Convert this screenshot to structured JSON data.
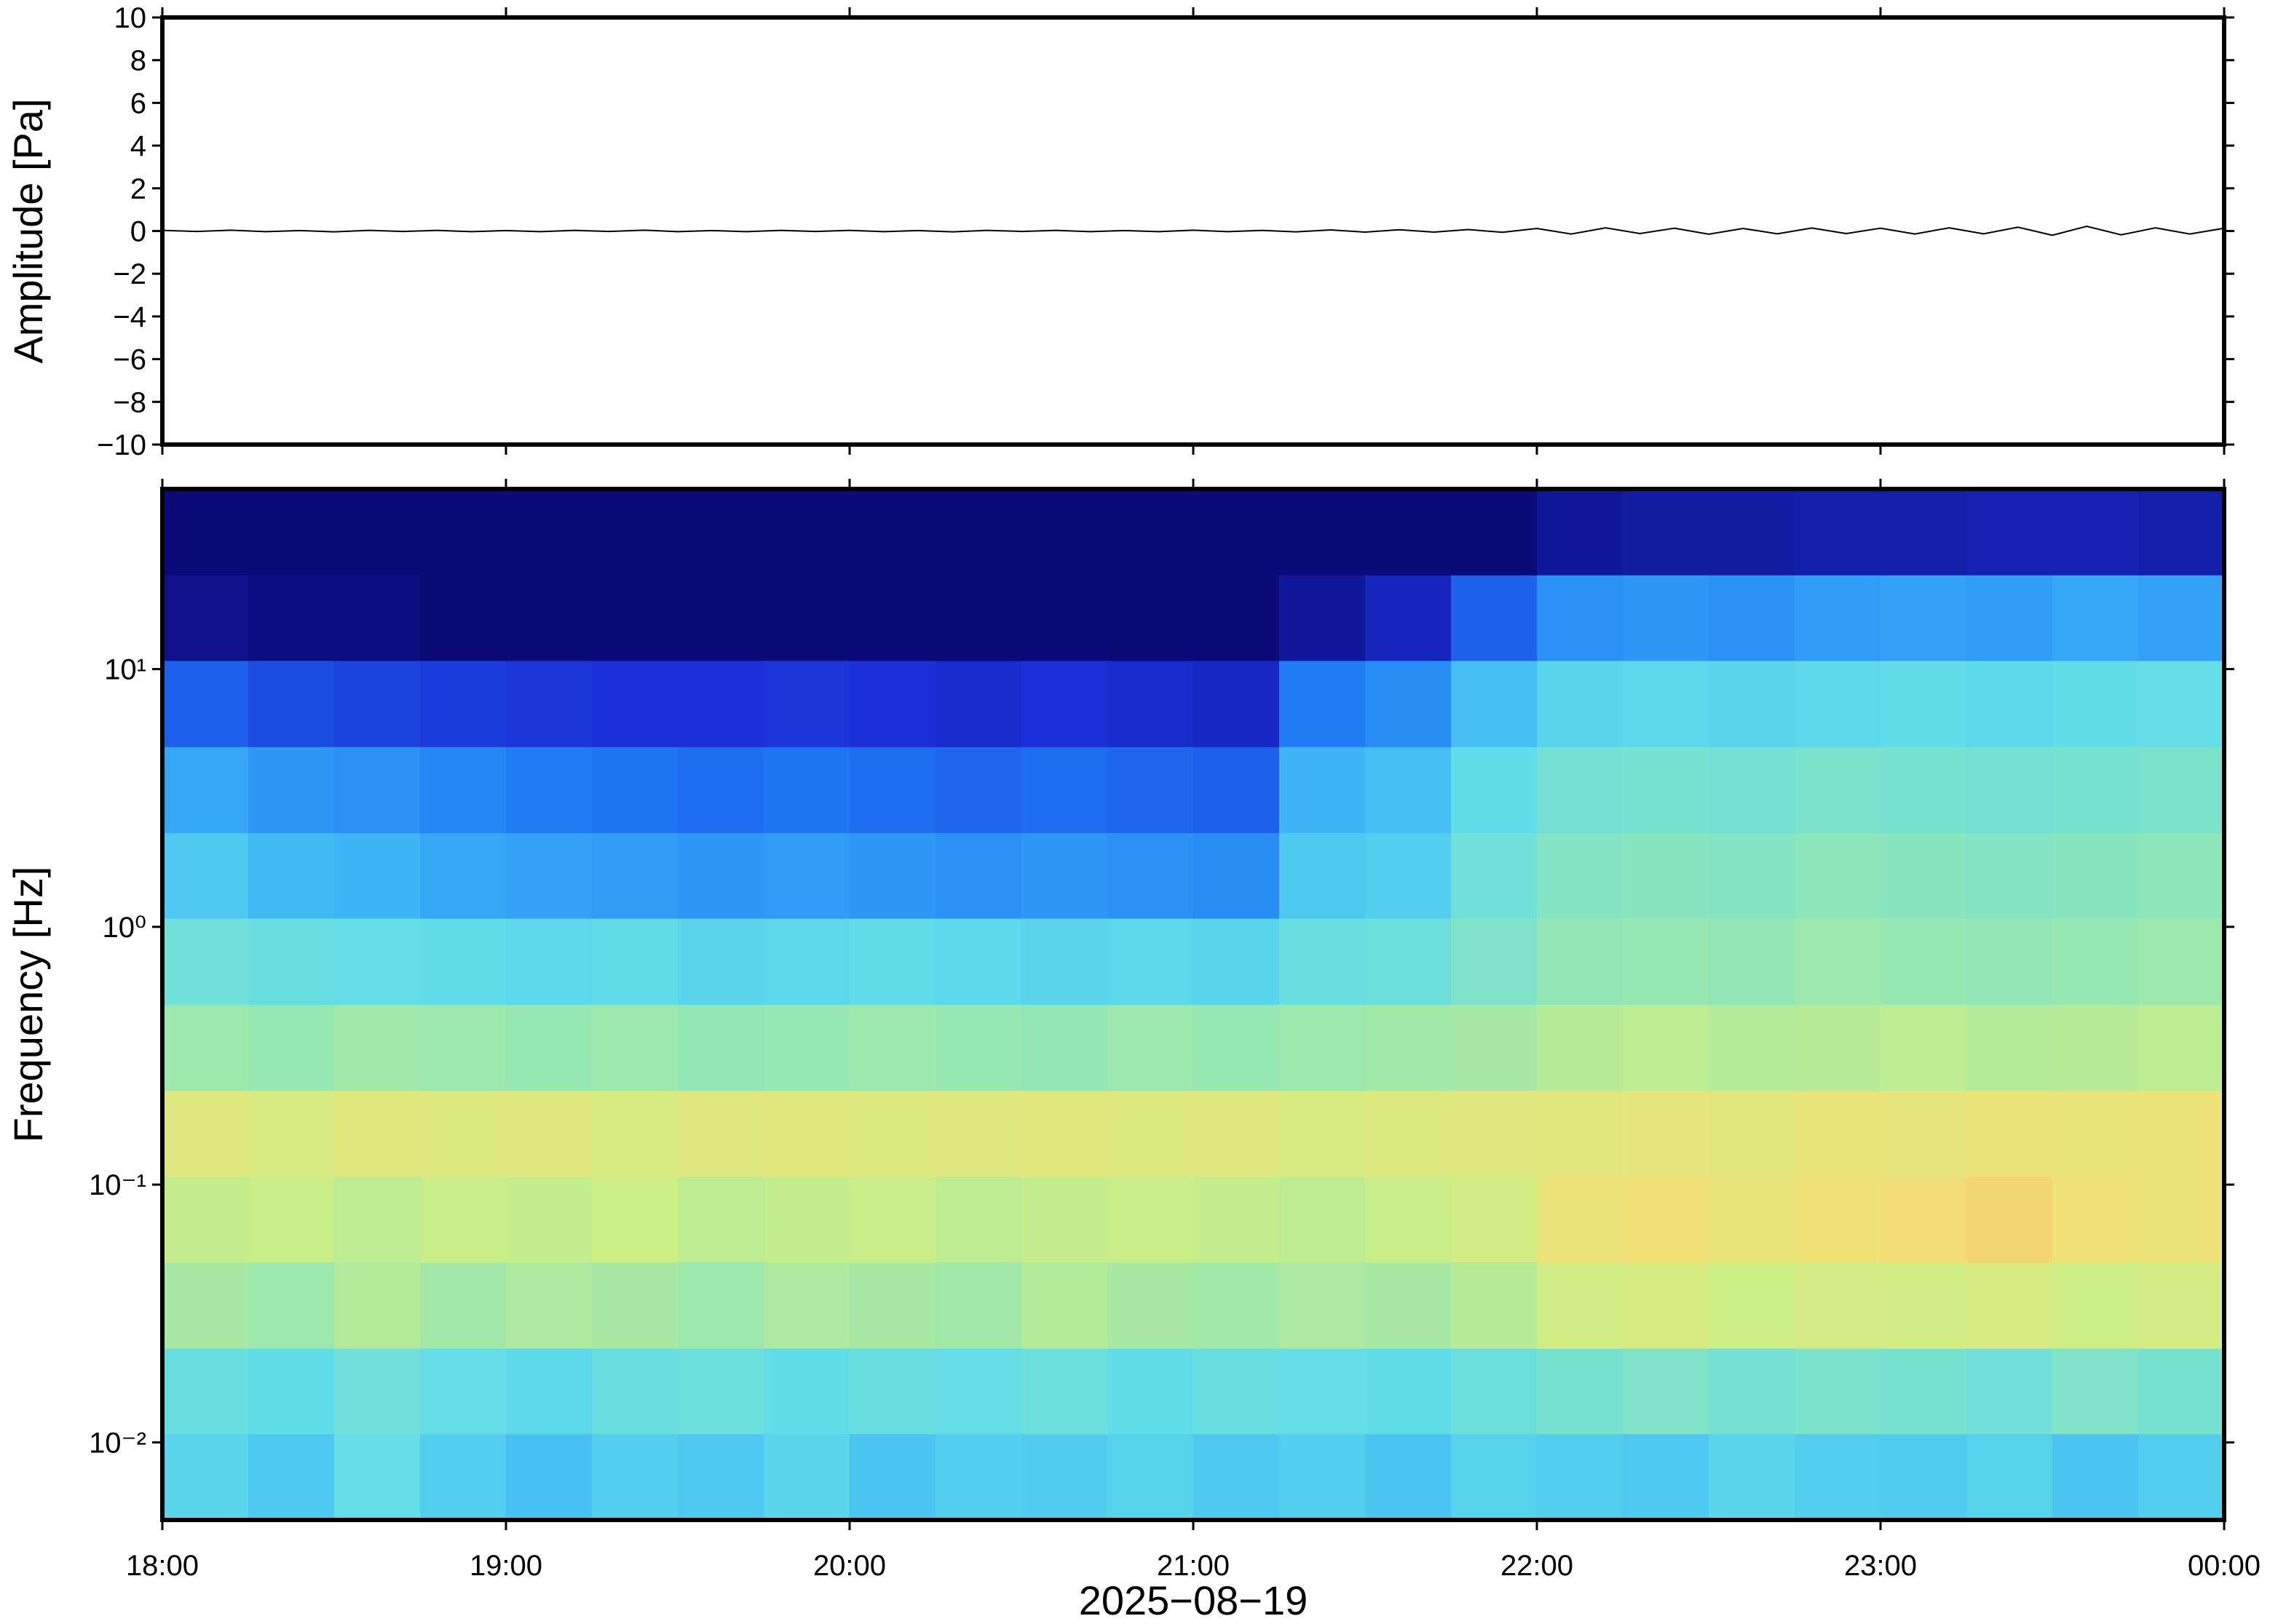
{
  "chart_data": [
    {
      "type": "line",
      "ylabel": "Amplitude [Pa]",
      "xlim": [
        18,
        24
      ],
      "xticks": [
        18,
        19,
        20,
        21,
        22,
        23,
        24
      ],
      "ylim": [
        -10,
        10
      ],
      "yticks": [
        {
          "value": -10,
          "label": "−10"
        },
        {
          "value": -8,
          "label": "−8"
        },
        {
          "value": -6,
          "label": "−6"
        },
        {
          "value": -4,
          "label": "−4"
        },
        {
          "value": -2,
          "label": "−2"
        },
        0,
        2,
        4,
        6,
        8,
        10
      ],
      "series": [
        {
          "color": "#000000",
          "x": [
            18,
            18.1,
            18.2,
            18.3,
            18.4,
            18.5,
            18.6,
            18.7,
            18.8,
            18.9,
            19,
            19.1,
            19.2,
            19.3,
            19.4,
            19.5,
            19.6,
            19.7,
            19.8,
            19.9,
            20,
            20.1,
            20.2,
            20.3,
            20.4,
            20.5,
            20.6,
            20.7,
            20.8,
            20.9,
            21,
            21.1,
            21.2,
            21.3,
            21.4,
            21.5,
            21.6,
            21.7,
            21.8,
            21.9,
            22,
            22.1,
            22.2,
            22.3,
            22.4,
            22.5,
            22.6,
            22.7,
            22.8,
            22.9,
            23,
            23.1,
            23.2,
            23.3,
            23.4,
            23.5,
            23.6,
            23.7,
            23.8,
            23.9,
            24
          ],
          "values": [
            0.03,
            -0.02,
            0.04,
            -0.03,
            0.02,
            -0.04,
            0.03,
            -0.02,
            0.03,
            -0.03,
            0.02,
            -0.03,
            0.03,
            -0.02,
            0.04,
            -0.03,
            0.02,
            -0.03,
            0.03,
            -0.02,
            0.03,
            -0.03,
            0.02,
            -0.04,
            0.03,
            -0.02,
            0.03,
            -0.03,
            0.02,
            -0.03,
            0.04,
            -0.03,
            0.03,
            -0.04,
            0.05,
            -0.05,
            0.06,
            -0.05,
            0.07,
            -0.06,
            0.12,
            -0.14,
            0.15,
            -0.12,
            0.13,
            -0.15,
            0.12,
            -0.13,
            0.14,
            -0.12,
            0.13,
            -0.14,
            0.15,
            -0.13,
            0.18,
            -0.2,
            0.22,
            -0.18,
            0.15,
            -0.14,
            0.13
          ]
        }
      ]
    },
    {
      "type": "heatmap",
      "ylabel": "Frequency [Hz]",
      "xlabel": "2025−08−19",
      "xlim": [
        18,
        24
      ],
      "xticks": [
        {
          "value": 18,
          "label": "18:00"
        },
        {
          "value": 19,
          "label": "19:00"
        },
        {
          "value": 20,
          "label": "20:00"
        },
        {
          "value": 21,
          "label": "21:00"
        },
        {
          "value": 22,
          "label": "22:00"
        },
        {
          "value": 23,
          "label": "23:00"
        },
        {
          "value": 24,
          "label": "00:00"
        }
      ],
      "ylim": [
        0.005,
        50
      ],
      "log_y": true,
      "yticks": [
        {
          "value": 0.01,
          "label": "10⁻²"
        },
        {
          "value": 0.1,
          "label": "10⁻¹"
        },
        {
          "value": 1,
          "label": "10⁰"
        },
        {
          "value": 10,
          "label": "10¹"
        }
      ],
      "colormap": [
        "#0b0a78",
        "#1a2fd6",
        "#1f7ef5",
        "#3fb8f5",
        "#62dde8",
        "#8ee6b8",
        "#cdee86",
        "#f2e277",
        "#f6a865",
        "#e8503f"
      ],
      "xbins": [
        18,
        18.25,
        18.5,
        18.75,
        19,
        19.25,
        19.5,
        19.75,
        20,
        20.25,
        20.5,
        20.75,
        21,
        21.25,
        21.5,
        21.75,
        22,
        22.25,
        22.5,
        22.75,
        23,
        23.25,
        23.5,
        23.75,
        24
      ],
      "ybins": [
        0.005,
        0.0108,
        0.0232,
        0.05,
        0.108,
        0.232,
        0.5,
        1.08,
        2.32,
        5,
        10.8,
        23.2,
        50
      ],
      "z": [
        [
          0.42,
          0.38,
          0.45,
          0.4,
          0.36,
          0.4,
          0.38,
          0.42,
          0.37,
          0.4,
          0.39,
          0.41,
          0.38,
          0.4,
          0.37,
          0.41,
          0.4,
          0.38,
          0.42,
          0.4,
          0.39,
          0.41,
          0.37,
          0.4
        ],
        [
          0.46,
          0.44,
          0.48,
          0.45,
          0.43,
          0.46,
          0.47,
          0.44,
          0.46,
          0.45,
          0.47,
          0.44,
          0.46,
          0.45,
          0.44,
          0.47,
          0.5,
          0.52,
          0.49,
          0.51,
          0.5,
          0.48,
          0.52,
          0.5
        ],
        [
          0.6,
          0.58,
          0.62,
          0.59,
          0.61,
          0.6,
          0.58,
          0.61,
          0.6,
          0.59,
          0.62,
          0.6,
          0.59,
          0.61,
          0.6,
          0.63,
          0.68,
          0.7,
          0.67,
          0.69,
          0.68,
          0.7,
          0.67,
          0.69
        ],
        [
          0.65,
          0.66,
          0.64,
          0.66,
          0.65,
          0.67,
          0.64,
          0.65,
          0.66,
          0.64,
          0.65,
          0.66,
          0.65,
          0.64,
          0.66,
          0.68,
          0.76,
          0.78,
          0.75,
          0.77,
          0.79,
          0.8,
          0.77,
          0.76
        ],
        [
          0.72,
          0.7,
          0.73,
          0.71,
          0.72,
          0.7,
          0.72,
          0.73,
          0.71,
          0.72,
          0.73,
          0.71,
          0.72,
          0.7,
          0.71,
          0.72,
          0.73,
          0.74,
          0.73,
          0.75,
          0.74,
          0.76,
          0.75,
          0.76
        ],
        [
          0.58,
          0.57,
          0.59,
          0.58,
          0.57,
          0.58,
          0.56,
          0.57,
          0.58,
          0.57,
          0.56,
          0.58,
          0.57,
          0.58,
          0.59,
          0.6,
          0.63,
          0.64,
          0.62,
          0.63,
          0.64,
          0.62,
          0.63,
          0.64
        ],
        [
          0.48,
          0.46,
          0.45,
          0.44,
          0.43,
          0.44,
          0.42,
          0.43,
          0.44,
          0.43,
          0.42,
          0.43,
          0.42,
          0.46,
          0.47,
          0.52,
          0.56,
          0.57,
          0.56,
          0.58,
          0.57,
          0.56,
          0.57,
          0.58
        ],
        [
          0.38,
          0.34,
          0.33,
          0.3,
          0.29,
          0.28,
          0.27,
          0.28,
          0.27,
          0.26,
          0.27,
          0.26,
          0.25,
          0.38,
          0.4,
          0.48,
          0.53,
          0.54,
          0.53,
          0.55,
          0.54,
          0.53,
          0.54,
          0.55
        ],
        [
          0.3,
          0.27,
          0.26,
          0.24,
          0.22,
          0.21,
          0.2,
          0.21,
          0.2,
          0.19,
          0.2,
          0.19,
          0.18,
          0.33,
          0.35,
          0.44,
          0.49,
          0.5,
          0.49,
          0.51,
          0.5,
          0.49,
          0.5,
          0.51
        ],
        [
          0.18,
          0.15,
          0.14,
          0.13,
          0.12,
          0.11,
          0.11,
          0.12,
          0.11,
          0.1,
          0.11,
          0.1,
          0.09,
          0.22,
          0.25,
          0.35,
          0.42,
          0.43,
          0.42,
          0.43,
          0.44,
          0.43,
          0.44,
          0.45
        ],
        [
          0.02,
          0.01,
          0.01,
          0,
          0,
          0,
          0,
          0,
          0,
          0,
          0,
          0,
          0,
          0.04,
          0.08,
          0.18,
          0.26,
          0.27,
          0.26,
          0.28,
          0.29,
          0.28,
          0.3,
          0.29
        ],
        [
          0,
          0,
          0,
          0,
          0,
          0,
          0,
          0,
          0,
          0,
          0,
          0,
          0,
          0,
          0,
          0,
          0.04,
          0.05,
          0.05,
          0.06,
          0.06,
          0.07,
          0.07,
          0.06
        ]
      ]
    }
  ]
}
